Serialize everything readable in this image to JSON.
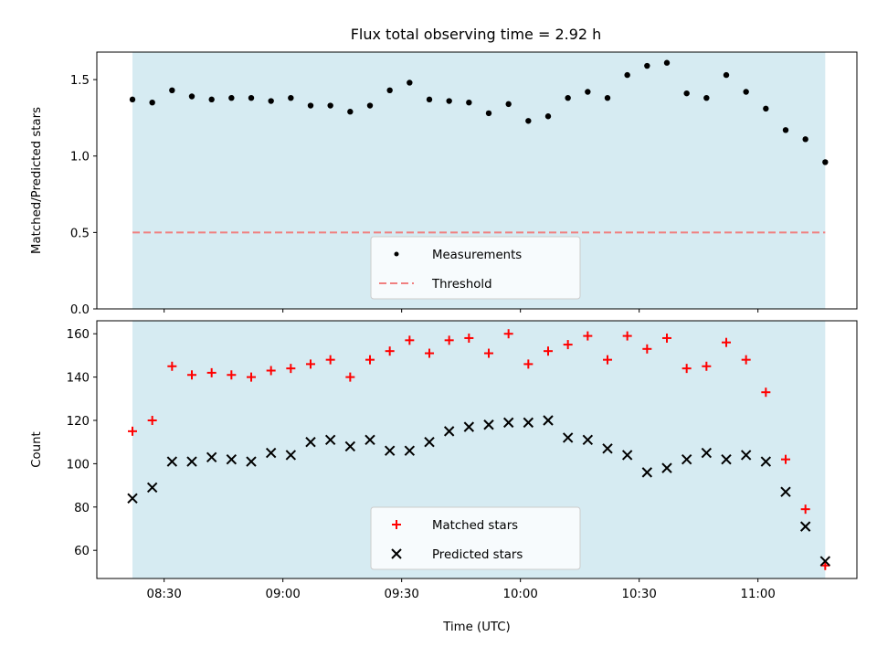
{
  "title": "Flux total observing time = 2.92 h",
  "colors": {
    "span": "#add8e6",
    "threshold": "#f08080",
    "matched": "#ff0000",
    "predicted": "#000000",
    "measurement": "#000000"
  },
  "chart_data": [
    {
      "type": "scatter",
      "ylabel": "Matched/Predicted stars",
      "ylim": [
        0,
        1.68
      ],
      "yticks": [
        0.0,
        0.5,
        1.0,
        1.5
      ],
      "ytick_labels": [
        "0.0",
        "0.5",
        "1.0",
        "1.5"
      ],
      "shaded_span": {
        "start": "08:22",
        "end": "11:17"
      },
      "legend": {
        "placement": "lower center",
        "entries": [
          "Measurements",
          "Threshold"
        ]
      },
      "series": [
        {
          "name": "Measurements",
          "marker": "dot",
          "x": [
            "08:22",
            "08:27",
            "08:32",
            "08:37",
            "08:42",
            "08:47",
            "08:52",
            "08:57",
            "09:02",
            "09:07",
            "09:12",
            "09:17",
            "09:22",
            "09:27",
            "09:32",
            "09:37",
            "09:42",
            "09:47",
            "09:52",
            "09:57",
            "10:02",
            "10:07",
            "10:12",
            "10:17",
            "10:22",
            "10:27",
            "10:32",
            "10:37",
            "10:42",
            "10:47",
            "10:52",
            "10:57",
            "11:02",
            "11:07",
            "11:12",
            "11:17"
          ],
          "y": [
            1.37,
            1.35,
            1.43,
            1.39,
            1.37,
            1.38,
            1.38,
            1.36,
            1.38,
            1.33,
            1.33,
            1.29,
            1.33,
            1.43,
            1.48,
            1.37,
            1.36,
            1.35,
            1.28,
            1.34,
            1.23,
            1.26,
            1.38,
            1.42,
            1.38,
            1.53,
            1.59,
            1.61,
            1.41,
            1.38,
            1.53,
            1.42,
            1.31,
            1.17,
            1.11,
            0.96
          ]
        },
        {
          "name": "Threshold",
          "style": "dashed",
          "y_const": 0.5
        }
      ]
    },
    {
      "type": "scatter",
      "xlabel": "Time (UTC)",
      "ylabel": "Count",
      "ylim": [
        47,
        166
      ],
      "yticks": [
        60,
        80,
        100,
        120,
        140,
        160
      ],
      "ytick_labels": [
        "60",
        "80",
        "100",
        "120",
        "140",
        "160"
      ],
      "xlim": [
        "08:13",
        "11:25"
      ],
      "xticks": [
        "08:30",
        "09:00",
        "09:30",
        "10:00",
        "10:30",
        "11:00"
      ],
      "shaded_span": {
        "start": "08:22",
        "end": "11:17"
      },
      "legend": {
        "placement": "lower center",
        "entries": [
          "Matched stars",
          "Predicted stars"
        ]
      },
      "series": [
        {
          "name": "Matched stars",
          "marker": "plus",
          "x": [
            "08:22",
            "08:27",
            "08:32",
            "08:37",
            "08:42",
            "08:47",
            "08:52",
            "08:57",
            "09:02",
            "09:07",
            "09:12",
            "09:17",
            "09:22",
            "09:27",
            "09:32",
            "09:37",
            "09:42",
            "09:47",
            "09:52",
            "09:57",
            "10:02",
            "10:07",
            "10:12",
            "10:17",
            "10:22",
            "10:27",
            "10:32",
            "10:37",
            "10:42",
            "10:47",
            "10:52",
            "10:57",
            "11:02",
            "11:07",
            "11:12",
            "11:17"
          ],
          "y": [
            115,
            120,
            145,
            141,
            142,
            141,
            140,
            143,
            144,
            146,
            148,
            140,
            148,
            152,
            157,
            151,
            157,
            158,
            151,
            160,
            146,
            152,
            155,
            159,
            148,
            159,
            153,
            158,
            144,
            145,
            156,
            148,
            133,
            102,
            79,
            53
          ]
        },
        {
          "name": "Predicted stars",
          "marker": "x",
          "x": [
            "08:22",
            "08:27",
            "08:32",
            "08:37",
            "08:42",
            "08:47",
            "08:52",
            "08:57",
            "09:02",
            "09:07",
            "09:12",
            "09:17",
            "09:22",
            "09:27",
            "09:32",
            "09:37",
            "09:42",
            "09:47",
            "09:52",
            "09:57",
            "10:02",
            "10:07",
            "10:12",
            "10:17",
            "10:22",
            "10:27",
            "10:32",
            "10:37",
            "10:42",
            "10:47",
            "10:52",
            "10:57",
            "11:02",
            "11:07",
            "11:12",
            "11:17"
          ],
          "y": [
            84,
            89,
            101,
            101,
            103,
            102,
            101,
            105,
            104,
            110,
            111,
            108,
            111,
            106,
            106,
            110,
            115,
            117,
            118,
            119,
            119,
            120,
            112,
            111,
            107,
            104,
            96,
            98,
            102,
            105,
            102,
            104,
            101,
            87,
            71,
            55
          ]
        }
      ]
    }
  ]
}
